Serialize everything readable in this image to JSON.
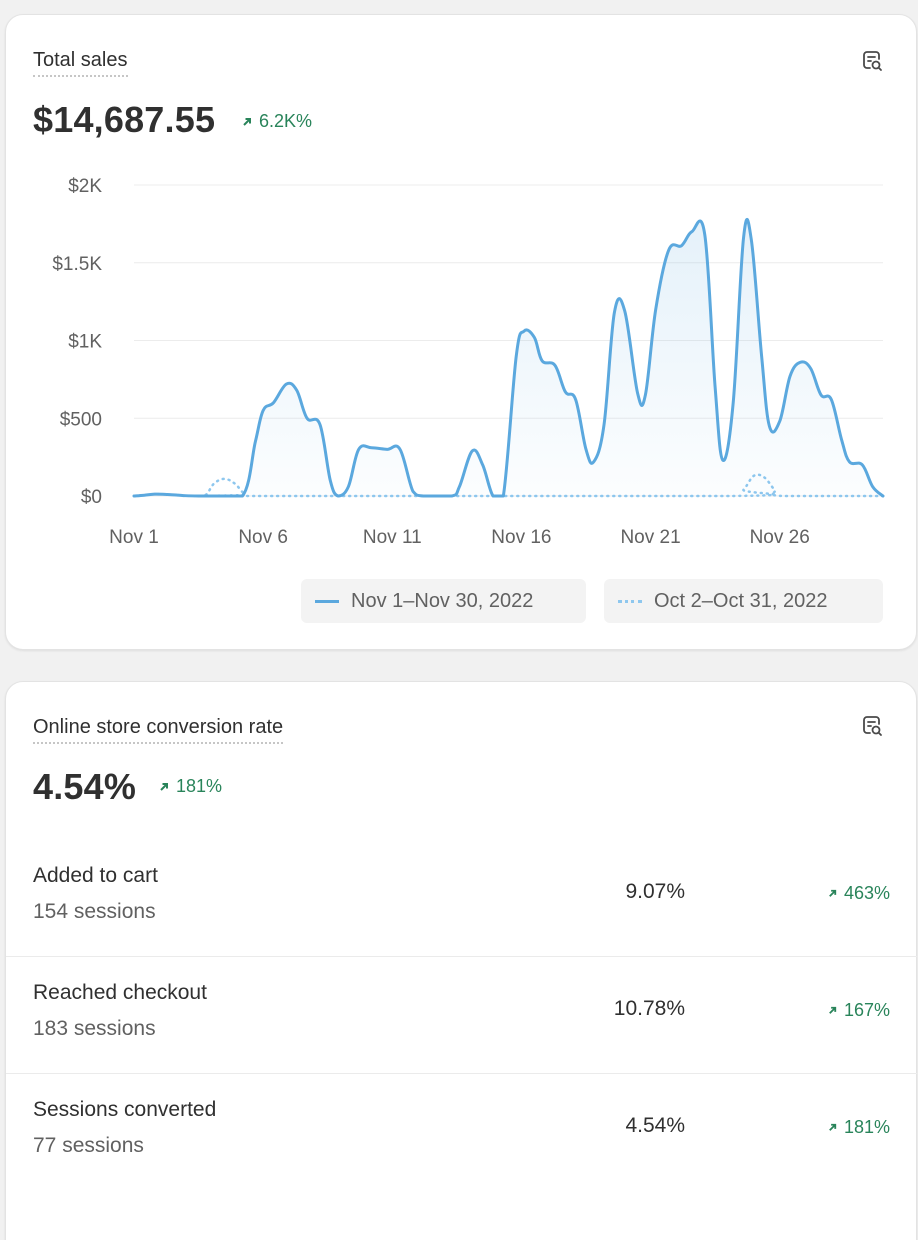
{
  "total_sales": {
    "title": "Total sales",
    "value": "$14,687.55",
    "change": "6.2K%",
    "legend": [
      {
        "label": "Nov 1–Nov 30, 2022",
        "style": "solid"
      },
      {
        "label": "Oct 2–Oct 31, 2022",
        "style": "dotted"
      }
    ]
  },
  "conversion": {
    "title": "Online store conversion rate",
    "value": "4.54%",
    "change": "181%",
    "rows": [
      {
        "title": "Added to cart",
        "sessions": "154 sessions",
        "rate": "9.07%",
        "change": "463%"
      },
      {
        "title": "Reached checkout",
        "sessions": "183 sessions",
        "rate": "10.78%",
        "change": "167%"
      },
      {
        "title": "Sessions converted",
        "sessions": "77 sessions",
        "rate": "4.54%",
        "change": "181%"
      }
    ]
  },
  "colors": {
    "accent_line": "#5ba8de",
    "positive": "#29845a"
  },
  "icons": {
    "explore": "search-chart-icon",
    "trend_up": "arrow-up-right-icon"
  },
  "chart_data": {
    "type": "area",
    "x_tick_labels": [
      "Nov 1",
      "Nov 6",
      "Nov 11",
      "Nov 16",
      "Nov 21",
      "Nov 26"
    ],
    "y_tick_labels": [
      "$0",
      "$500",
      "$1K",
      "$1.5K",
      "$2K"
    ],
    "ylim": [
      0,
      2000
    ],
    "xlim": [
      1,
      30
    ],
    "grid": true,
    "legend_position": "bottom-right",
    "series": [
      {
        "name": "Nov 1–Nov 30, 2022",
        "style": "solid",
        "points": [
          [
            1,
            0
          ],
          [
            1.4,
            5
          ],
          [
            1.8,
            12
          ],
          [
            2.3,
            10
          ],
          [
            2.7,
            6
          ],
          [
            3.0,
            2
          ],
          [
            3.5,
            0
          ],
          [
            4,
            0
          ],
          [
            5.2,
            0
          ],
          [
            5.7,
            350
          ],
          [
            6.0,
            550
          ],
          [
            6.4,
            600
          ],
          [
            6.9,
            720
          ],
          [
            7.3,
            680
          ],
          [
            7.7,
            500
          ],
          [
            8.2,
            460
          ],
          [
            8.6,
            100
          ],
          [
            8.9,
            0
          ],
          [
            9.3,
            60
          ],
          [
            9.7,
            300
          ],
          [
            10.2,
            310
          ],
          [
            10.8,
            300
          ],
          [
            11.3,
            300
          ],
          [
            11.8,
            30
          ],
          [
            12.2,
            0
          ],
          [
            13.3,
            0
          ],
          [
            13.6,
            60
          ],
          [
            14.1,
            290
          ],
          [
            14.5,
            200
          ],
          [
            14.9,
            0
          ],
          [
            15.3,
            0
          ],
          [
            15.8,
            900
          ],
          [
            16.1,
            1060
          ],
          [
            16.5,
            1020
          ],
          [
            16.8,
            870
          ],
          [
            17.3,
            840
          ],
          [
            17.7,
            670
          ],
          [
            18.1,
            620
          ],
          [
            18.5,
            300
          ],
          [
            18.8,
            220
          ],
          [
            19.2,
            460
          ],
          [
            19.6,
            1180
          ],
          [
            20.0,
            1190
          ],
          [
            20.5,
            660
          ],
          [
            20.8,
            650
          ],
          [
            21.2,
            1200
          ],
          [
            21.7,
            1580
          ],
          [
            22.2,
            1610
          ],
          [
            22.6,
            1700
          ],
          [
            23.1,
            1680
          ],
          [
            23.5,
            700
          ],
          [
            23.8,
            230
          ],
          [
            24.2,
            600
          ],
          [
            24.6,
            1660
          ],
          [
            24.9,
            1650
          ],
          [
            25.3,
            900
          ],
          [
            25.6,
            450
          ],
          [
            26.0,
            480
          ],
          [
            26.4,
            770
          ],
          [
            26.8,
            860
          ],
          [
            27.2,
            820
          ],
          [
            27.6,
            650
          ],
          [
            28.0,
            620
          ],
          [
            28.4,
            360
          ],
          [
            28.7,
            220
          ],
          [
            29.2,
            200
          ],
          [
            29.6,
            60
          ],
          [
            30,
            0
          ]
        ]
      },
      {
        "name": "Oct 2–Oct 31, 2022",
        "style": "dotted",
        "points": [
          [
            1,
            0
          ],
          [
            1.5,
            8
          ],
          [
            2.0,
            12
          ],
          [
            2.8,
            4
          ],
          [
            3.5,
            0
          ],
          [
            3.8,
            10
          ],
          [
            4.1,
            80
          ],
          [
            4.5,
            110
          ],
          [
            4.9,
            80
          ],
          [
            5.3,
            10
          ],
          [
            5.6,
            0
          ],
          [
            24.2,
            0
          ],
          [
            24.6,
            40
          ],
          [
            25.0,
            130
          ],
          [
            25.4,
            120
          ],
          [
            25.8,
            40
          ],
          [
            26.1,
            0
          ],
          [
            30,
            0
          ]
        ]
      }
    ]
  }
}
